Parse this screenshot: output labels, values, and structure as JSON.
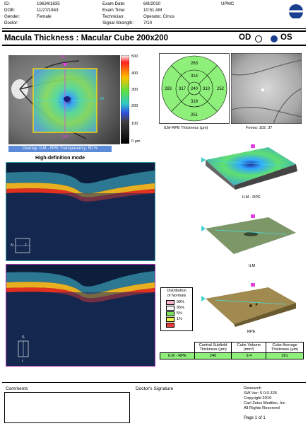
{
  "header": {
    "id_label": "ID:",
    "id_value": "19634/1835",
    "dob_label": "DOB:",
    "dob_value": "11/27/1943",
    "gender_label": "Gender:",
    "gender_value": "Female",
    "doctor_label": "Doctor:",
    "doctor_value": "",
    "exam_date_label": "Exam Date:",
    "exam_date_value": "6/8/2010",
    "exam_time_label": "Exam Time:",
    "exam_time_value": "10:51 AM",
    "technician_label": "Technician:",
    "technician_value": "Operator, Cirrus",
    "signal_label": "Signal Strength:",
    "signal_value": "7/10",
    "institution": "UPMC"
  },
  "title": "Macula Thickness : Macular Cube 200x200",
  "eye": {
    "od": "OD",
    "os": "OS",
    "selected": "OS"
  },
  "colorbar": {
    "labels": [
      "500",
      "400",
      "300",
      "200",
      "100",
      "0 µm"
    ]
  },
  "fundus": {
    "marker_left": "60",
    "marker_bottom": "100",
    "marker_right": "60"
  },
  "overlay_caption": "Overlay: ILM - RPE  Transparency: 50 %",
  "etdrs": {
    "caption": "ILM-RPE Thickness (µm)",
    "center": "240",
    "inner_top": "314",
    "inner_left": "317",
    "inner_right": "310",
    "inner_bottom": "318",
    "outer_top": "263",
    "outer_left": "283",
    "outer_right": "252",
    "outer_bottom": "251"
  },
  "fovea_caption": "Fovea: 102, 37",
  "hd_mode": "High-definition mode",
  "orient1": {
    "n": "N",
    "t": "T"
  },
  "orient2": {
    "s": "S",
    "i": "I"
  },
  "surfaces": {
    "ilm_rpe": "ILM - RPE",
    "ilm": "ILM",
    "rpe": "RPE"
  },
  "distribution": {
    "title_line1": "Distribution",
    "title_line2": "of Normals",
    "items": [
      {
        "label": "99%",
        "color": "#f7b4c8"
      },
      {
        "label": "95%",
        "color": "#f5f5f5"
      },
      {
        "label": "5%",
        "color": "#7ee05a"
      },
      {
        "label": "1%",
        "color": "#f0f04a"
      },
      {
        "label": "",
        "color": "#e83a3a"
      }
    ]
  },
  "results": {
    "col1": "Central Subfield Thickness (µm)",
    "col2": "Cube Volume (mm³)",
    "col3": "Cube Average Thickness (µm)",
    "row_label": "ILM - RPE",
    "v1": "240",
    "v2": "9.4",
    "v3": "261"
  },
  "footer": {
    "comments": "Comments",
    "signature": "Doctor's Signature",
    "info": [
      "Research",
      "SW Ver: 5.0.0.326",
      "Copyright 2010",
      "Carl Zeiss Meditec, Inc",
      "All Rights Reserved"
    ],
    "page": "Page 1 of 1"
  }
}
